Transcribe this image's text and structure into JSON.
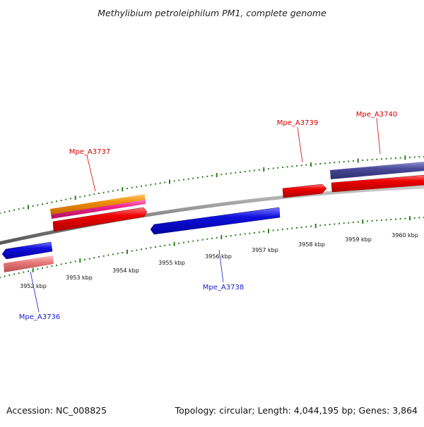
{
  "title": "Methylibium petroleiphilum PM1, complete genome",
  "footer": {
    "accession": "Accession: NC_008825",
    "summary": "Topology: circular; Length: 4,044,195 bp; Genes: 3,864"
  },
  "scale": {
    "unit": "kbp",
    "tick_labels": [
      "3952 kbp",
      "3953 kbp",
      "3954 kbp",
      "3955 kbp",
      "3956 kbp",
      "3957 kbp",
      "3958 kbp",
      "3959 kbp",
      "3960 kbp"
    ]
  },
  "genes": [
    {
      "id": "Mpe_A3736",
      "strand": "reverse",
      "label_color": "#1a1acc"
    },
    {
      "id": "Mpe_A3737",
      "strand": "forward",
      "label_color": "#d40000"
    },
    {
      "id": "Mpe_A3738",
      "strand": "reverse",
      "label_color": "#1a1acc"
    },
    {
      "id": "Mpe_A3739",
      "strand": "forward",
      "label_color": "#d40000"
    },
    {
      "id": "Mpe_A3740",
      "strand": "forward",
      "label_color": "#d40000"
    }
  ],
  "colors": {
    "backbone": "#8a8a8a",
    "tick": "#2e7d1e",
    "forward_gene": "#ee0000",
    "reverse_gene": "#1010dd",
    "forward_feature_orange": "#f08c00",
    "forward_feature_pink": "#ee2288",
    "forward_feature_purple": "#4a4a99",
    "reverse_feature_salmon": "#e87a7a"
  }
}
